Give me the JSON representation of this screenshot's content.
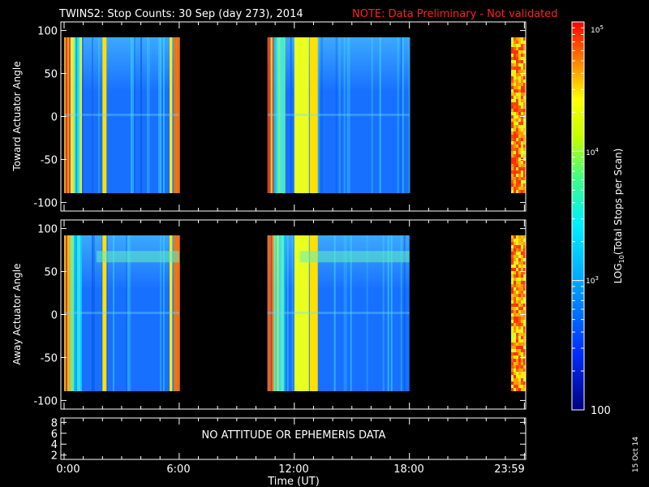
{
  "title": "TWINS2: Stop Counts: 30 Sep (day 273), 2014",
  "note": "NOTE: Data Preliminary - Not validated",
  "xlabel": "Time (UT)",
  "x_ticks": [
    "0:00",
    "6:00",
    "12:00",
    "18:00",
    "23:59"
  ],
  "stamp": "15 Oct 14",
  "colorbar": {
    "label": "LOG10(Total Stops per Scan)",
    "ticks": [
      "100",
      "10^3",
      "10^4",
      "10^5"
    ],
    "range": [
      100,
      100000
    ]
  },
  "panels": [
    {
      "ylabel": "Toward Actuator Angle",
      "y_ticks": [
        "100",
        "50",
        "0",
        "-50",
        "-100"
      ],
      "ylim": [
        -110,
        110
      ]
    },
    {
      "ylabel": "Away Actuator Angle",
      "y_ticks": [
        "100",
        "50",
        "0",
        "-50",
        "-100"
      ],
      "ylim": [
        -110,
        110
      ]
    },
    {
      "y_ticks": [
        "8",
        "6",
        "4",
        "2"
      ],
      "message": "NO ATTITUDE OR EPHEMERIS DATA"
    }
  ],
  "chart_data": {
    "type": "heatmap",
    "x_unit": "hours UT",
    "y_unit": "degrees",
    "data_intervals_hours": [
      [
        0.0,
        6.0
      ],
      [
        10.6,
        18.0
      ],
      [
        23.3,
        23.99
      ]
    ],
    "y_range_deg": [
      -90,
      90
    ],
    "value_range": [
      100,
      100000
    ],
    "scale": "log10"
  }
}
